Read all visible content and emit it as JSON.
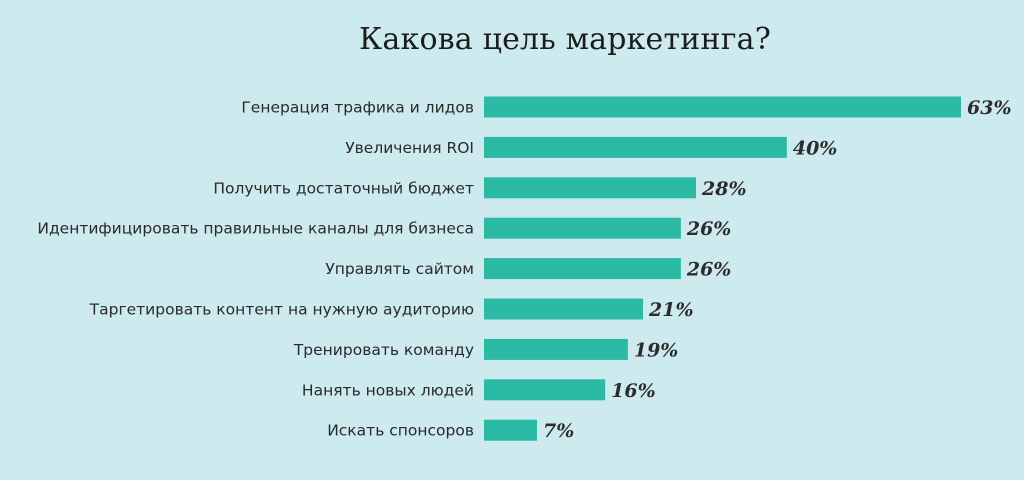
{
  "chart_data": {
    "type": "bar",
    "orientation": "horizontal",
    "title": "Какова цель маркетинга?",
    "categories": [
      "Генерация трафика и лидов",
      "Увеличения ROI",
      "Получить достаточный бюджет",
      "Идентифицировать правильные каналы для бизнеса",
      "Управлять сайтом",
      "Таргетировать контент на нужную аудиторию",
      "Тренировать команду",
      "Нанять новых людей",
      "Искать спонсоров"
    ],
    "values": [
      63,
      40,
      28,
      26,
      26,
      21,
      19,
      16,
      7
    ],
    "value_labels": [
      "63%",
      "40%",
      "28%",
      "26%",
      "26%",
      "21%",
      "19%",
      "16%",
      "7%"
    ],
    "xlabel": "",
    "ylabel": "",
    "xlim": [
      0,
      63
    ],
    "grid": false,
    "colors": {
      "bar": "#2bbaa4",
      "background": "#cdeaef",
      "text": "#2a2a2a"
    }
  }
}
